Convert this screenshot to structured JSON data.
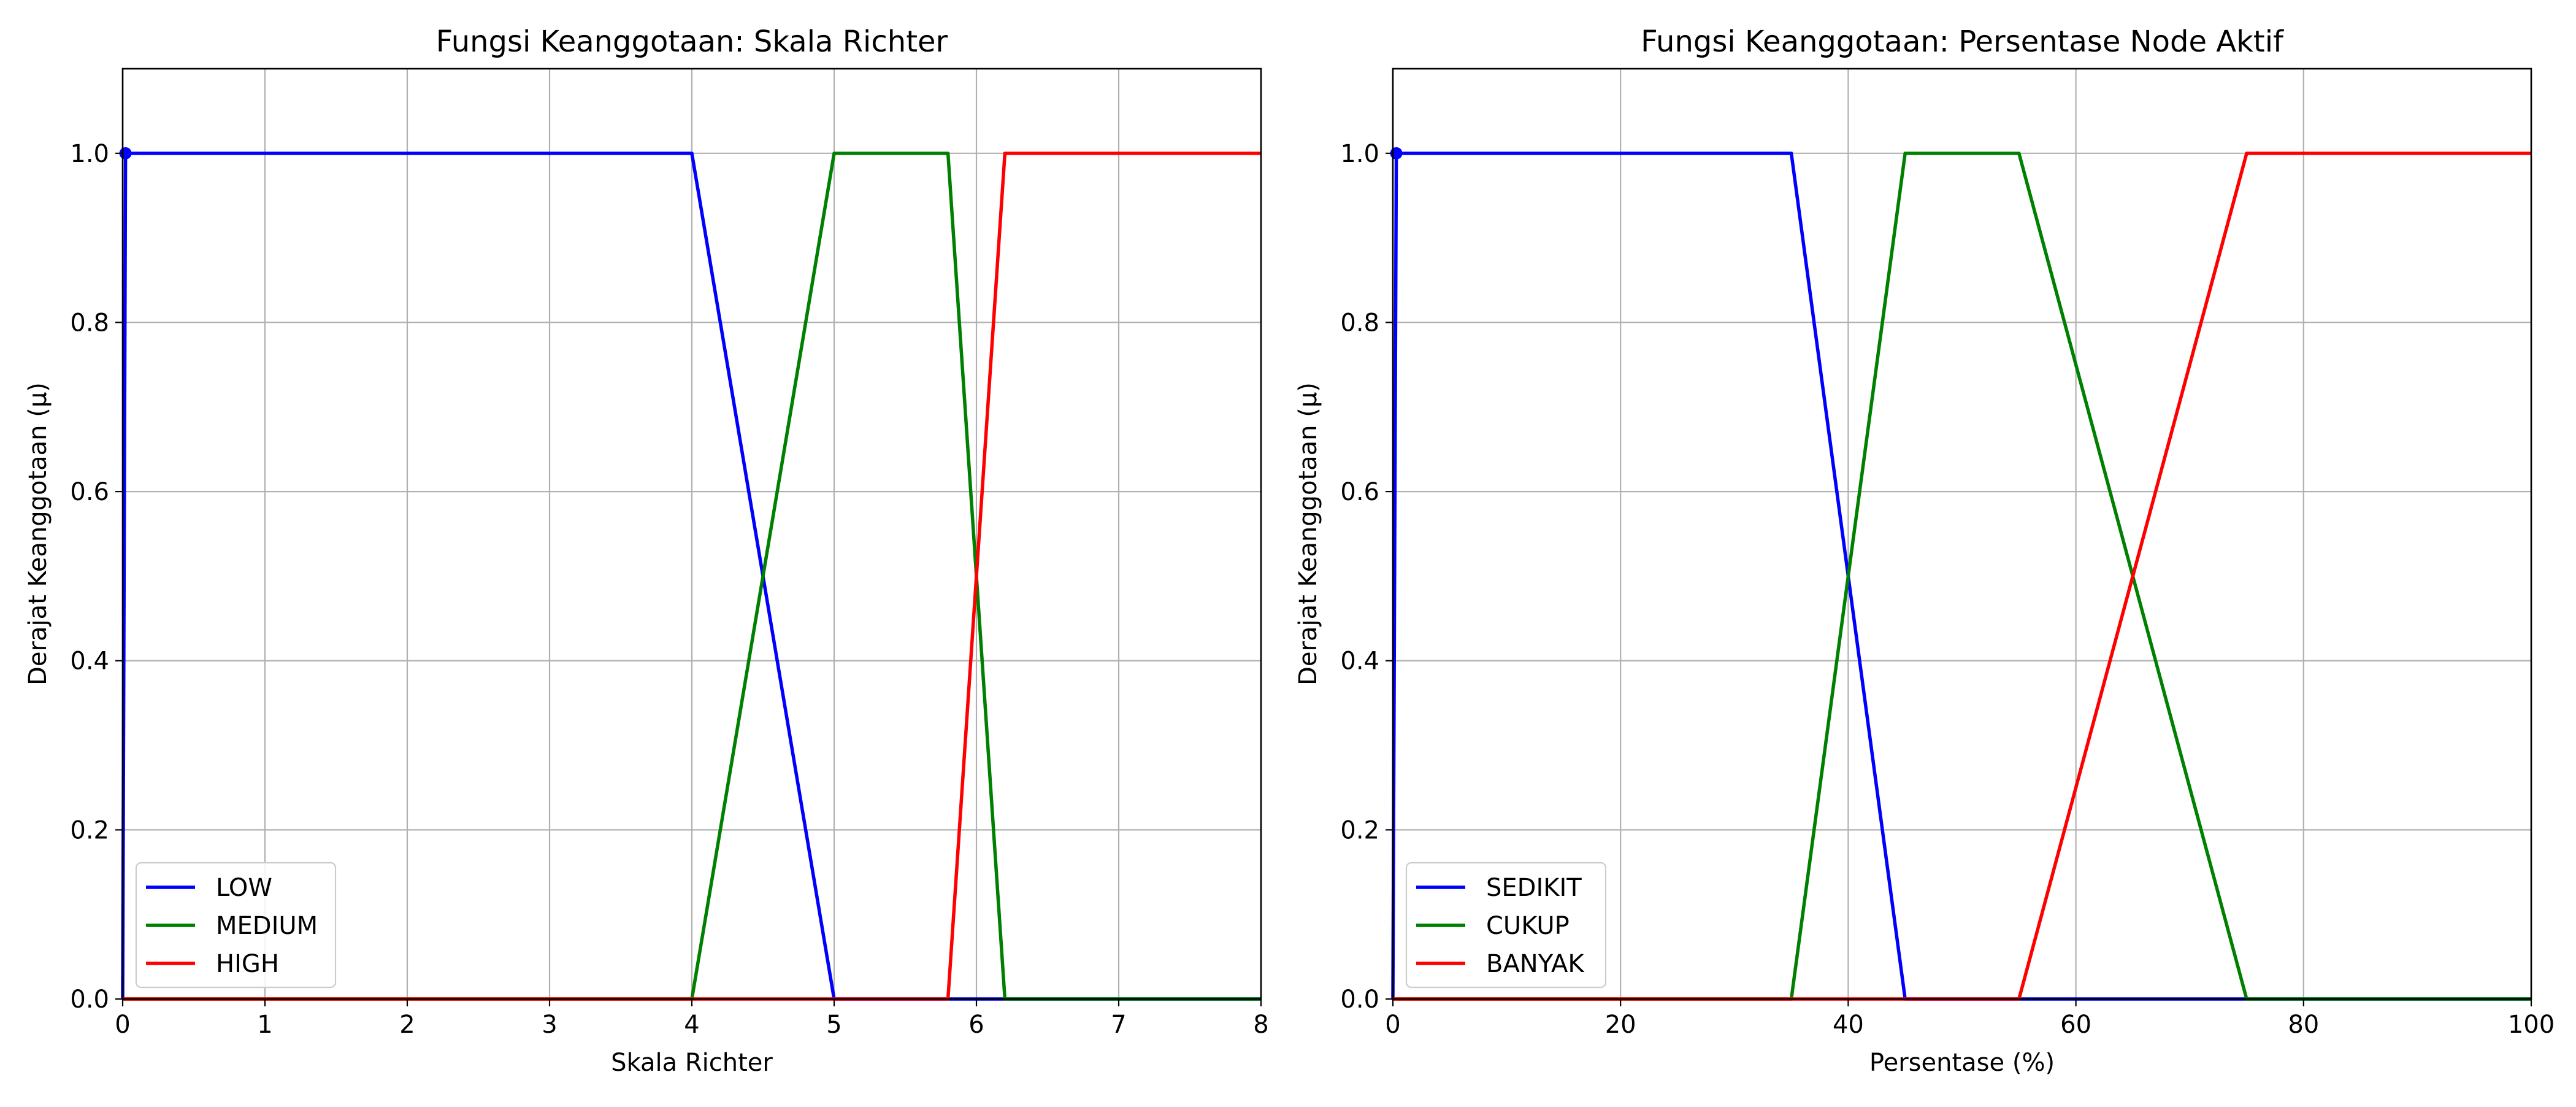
{
  "chart_data": [
    {
      "type": "line",
      "title": "Fungsi Keanggotaan: Skala Richter",
      "xlabel": "Skala Richter",
      "ylabel": "Derajat Keanggotaan (µ)",
      "xlim": [
        0,
        8
      ],
      "ylim": [
        0,
        1.1
      ],
      "xticks": [
        "0",
        "1",
        "2",
        "3",
        "4",
        "5",
        "6",
        "7",
        "8"
      ],
      "yticks": [
        "0.0",
        "0.2",
        "0.4",
        "0.6",
        "0.8",
        "1.0"
      ],
      "grid": true,
      "legend_position": "lower-left",
      "series": [
        {
          "name": "LOW",
          "color": "#0000ff",
          "x": [
            0,
            0.02,
            4.0,
            5.0,
            8.0
          ],
          "y": [
            0,
            1,
            1,
            0,
            0
          ]
        },
        {
          "name": "MEDIUM",
          "color": "#008000",
          "x": [
            0,
            4.0,
            5.0,
            5.8,
            6.2,
            8.0
          ],
          "y": [
            0,
            0,
            1,
            1,
            0,
            0
          ]
        },
        {
          "name": "HIGH",
          "color": "#ff0000",
          "x": [
            0,
            5.8,
            6.2,
            8.0
          ],
          "y": [
            0,
            0,
            1,
            1
          ]
        }
      ]
    },
    {
      "type": "line",
      "title": "Fungsi Keanggotaan: Persentase Node Aktif",
      "xlabel": "Persentase (%)",
      "ylabel": "Derajat Keanggotaan (µ)",
      "xlim": [
        0,
        100
      ],
      "ylim": [
        0,
        1.1
      ],
      "xticks": [
        "0",
        "20",
        "40",
        "60",
        "80",
        "100"
      ],
      "yticks": [
        "0.0",
        "0.2",
        "0.4",
        "0.6",
        "0.8",
        "1.0"
      ],
      "grid": true,
      "legend_position": "lower-left",
      "series": [
        {
          "name": "SEDIKIT",
          "color": "#0000ff",
          "x": [
            0,
            0.3,
            35,
            45,
            100
          ],
          "y": [
            0,
            1,
            1,
            0,
            0
          ]
        },
        {
          "name": "CUKUP",
          "color": "#008000",
          "x": [
            0,
            35,
            45,
            55,
            75,
            100
          ],
          "y": [
            0,
            0,
            1,
            1,
            0,
            0
          ]
        },
        {
          "name": "BANYAK",
          "color": "#ff0000",
          "x": [
            0,
            55,
            75,
            100
          ],
          "y": [
            0,
            0,
            1,
            1
          ]
        }
      ]
    }
  ]
}
